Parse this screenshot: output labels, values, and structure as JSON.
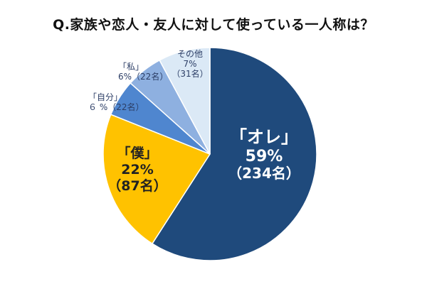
{
  "chart_data": {
    "type": "pie",
    "title": "Q.家族や恋人・友人に対して使っている一人称は？",
    "slices": [
      {
        "key": "ore",
        "label": "「オレ」",
        "percent_label": "59%",
        "count_label": "（234名）",
        "value": 234,
        "percent": 59,
        "color": "#1f4a7c"
      },
      {
        "key": "boku",
        "label": "「僕」",
        "percent_label": "22%",
        "count_label": "（87名）",
        "value": 87,
        "percent": 22,
        "color": "#ffc200"
      },
      {
        "key": "jibun",
        "label": "「自分」",
        "percent_label": "６ %",
        "count_label": "（22名）",
        "value": 22,
        "percent": 6,
        "color": "#4f86cf"
      },
      {
        "key": "watashi",
        "label": "「私」",
        "percent_label": "6%",
        "count_label": "（22名）",
        "value": 22,
        "percent": 6,
        "color": "#8eb0e0"
      },
      {
        "key": "other",
        "label": "その他",
        "percent_label": "7%",
        "count_label": "（31名）",
        "value": 31,
        "percent": 7,
        "color": "#dbe9f6"
      }
    ]
  }
}
